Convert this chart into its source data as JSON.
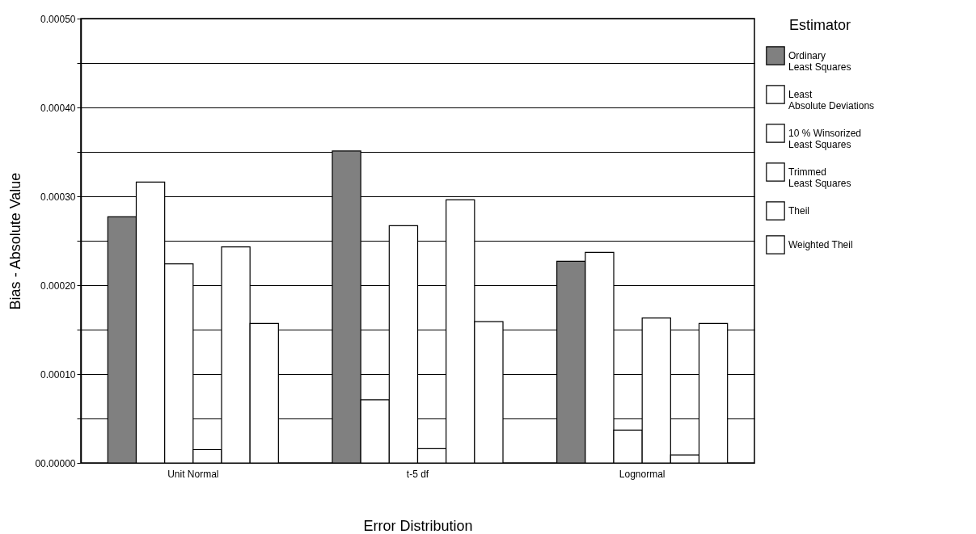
{
  "chart_data": {
    "type": "bar",
    "xlabel": "Error Distribution",
    "ylabel": "Bias - Absolute Value",
    "legend_title": "Estimator",
    "categories": [
      "Unit Normal",
      "t-5 df",
      "Lognormal"
    ],
    "series": [
      {
        "name": "Ordinary Least Squares",
        "color": "#808080",
        "values": [
          0.000277,
          0.000351,
          0.000227
        ]
      },
      {
        "name": "Least Absolute Deviations",
        "color": "#ffffff",
        "values": [
          0.000316,
          7.1e-05,
          0.000237
        ]
      },
      {
        "name": "10 % Winsorized Least Squares",
        "color": "#ffffff",
        "values": [
          0.000224,
          0.000267,
          3.7e-05
        ]
      },
      {
        "name": "Trimmed Least Squares",
        "color": "#ffffff",
        "values": [
          1.5e-05,
          1.6e-05,
          0.000163
        ]
      },
      {
        "name": "Theil",
        "color": "#ffffff",
        "values": [
          0.000243,
          0.000296,
          9e-06
        ]
      },
      {
        "name": "Weighted Theil",
        "color": "#ffffff",
        "values": [
          0.000157,
          0.000159,
          0.000157
        ]
      }
    ],
    "ylim": [
      0,
      0.0005
    ],
    "yticks": [
      {
        "value": 0,
        "label": "00.00000"
      },
      {
        "value": 5e-05,
        "label": null
      },
      {
        "value": 0.0001,
        "label": "0.00010"
      },
      {
        "value": 0.00015,
        "label": null
      },
      {
        "value": 0.0002,
        "label": "0.00020"
      },
      {
        "value": 0.00025,
        "label": null
      },
      {
        "value": 0.0003,
        "label": "0.00030"
      },
      {
        "value": 0.00035,
        "label": null
      },
      {
        "value": 0.0004,
        "label": "0.00040"
      },
      {
        "value": 0.00045,
        "label": null
      },
      {
        "value": 0.0005,
        "label": "0.00050"
      }
    ],
    "grid": "y",
    "legend": "right"
  }
}
